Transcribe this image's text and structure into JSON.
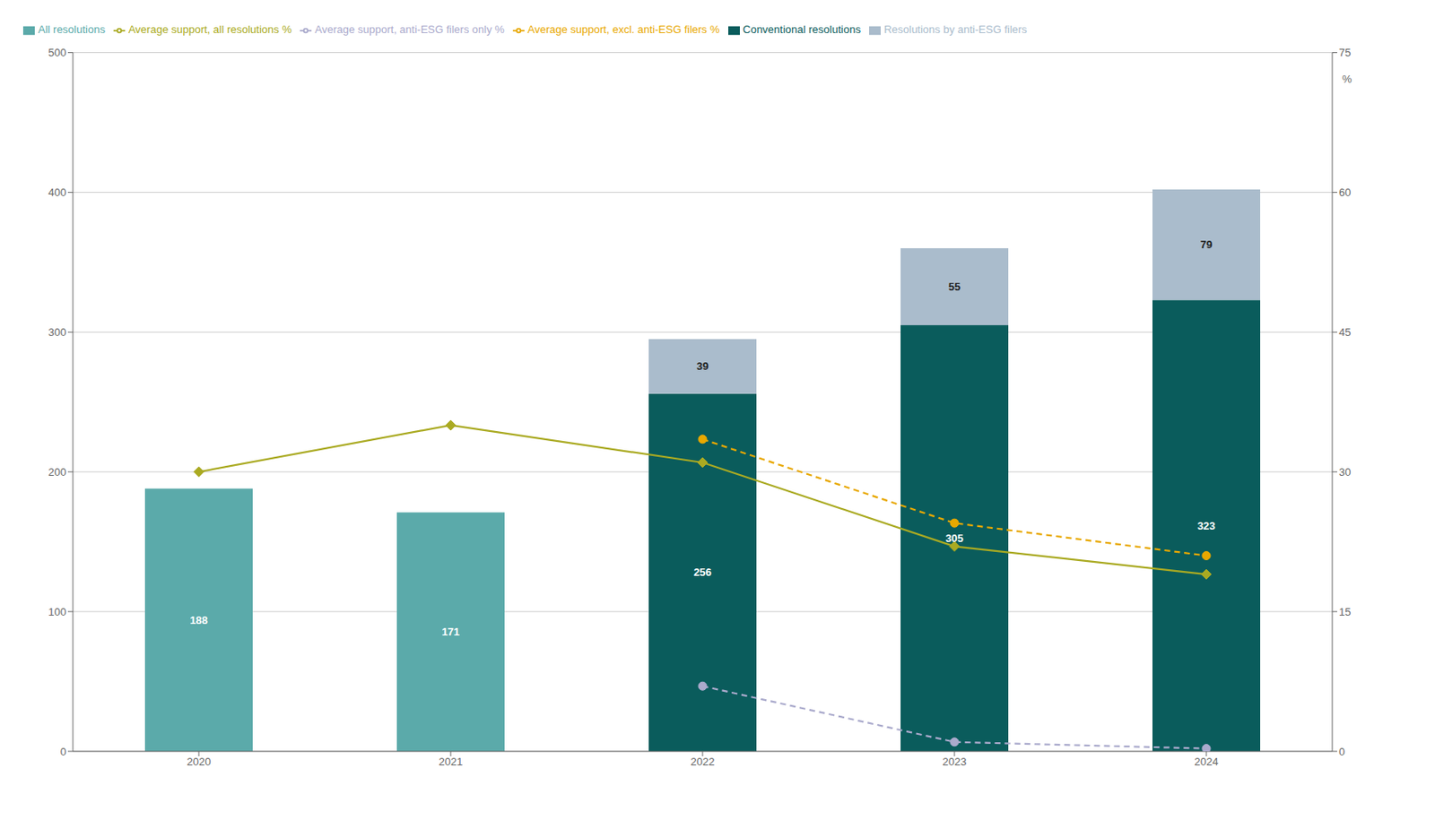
{
  "chart_data": {
    "type": "bar",
    "categories": [
      "2020",
      "2021",
      "2022",
      "2023",
      "2024"
    ],
    "series": [
      {
        "name": "All resolutions",
        "type": "bar",
        "color": "#5BAAAA",
        "data_labels": true,
        "values": [
          188,
          171,
          null,
          null,
          null
        ]
      },
      {
        "name": "Conventional resolutions",
        "type": "bar",
        "color": "#0A5C5C",
        "data_labels": true,
        "values": [
          null,
          null,
          256,
          305,
          323
        ]
      },
      {
        "name": "Resolutions by anti-ESG filers",
        "type": "bar",
        "color": "#AABCCC",
        "data_labels": true,
        "values": [
          null,
          null,
          39,
          55,
          79
        ]
      },
      {
        "name": "Average support, all resolutions %",
        "type": "line",
        "axis": "y2",
        "color": "#AAAA22",
        "marker": "diamond",
        "line_style": "solid",
        "values": [
          30.0,
          35.0,
          31.0,
          22.0,
          19.0
        ]
      },
      {
        "name": "Average support, excl. anti-ESG filers %",
        "type": "line",
        "axis": "y2",
        "color": "#E8A800",
        "marker": "circle",
        "line_style": "dashed",
        "values": [
          null,
          null,
          33.5,
          24.5,
          21.0
        ]
      },
      {
        "name": "Average support, anti-ESG filers only %",
        "type": "line",
        "axis": "y2",
        "color": "#AAAACC",
        "marker": "circle",
        "line_style": "dashed",
        "values": [
          null,
          null,
          7.0,
          1.0,
          0.3
        ]
      }
    ],
    "ylim": [
      0,
      500
    ],
    "yticks": [
      0,
      100,
      200,
      300,
      400,
      500
    ],
    "y2lim": [
      0,
      75
    ],
    "y2ticks": [
      0,
      15,
      30,
      45,
      60,
      75
    ],
    "y2label": "%",
    "stacked": true,
    "grid": true,
    "legend": "top"
  }
}
